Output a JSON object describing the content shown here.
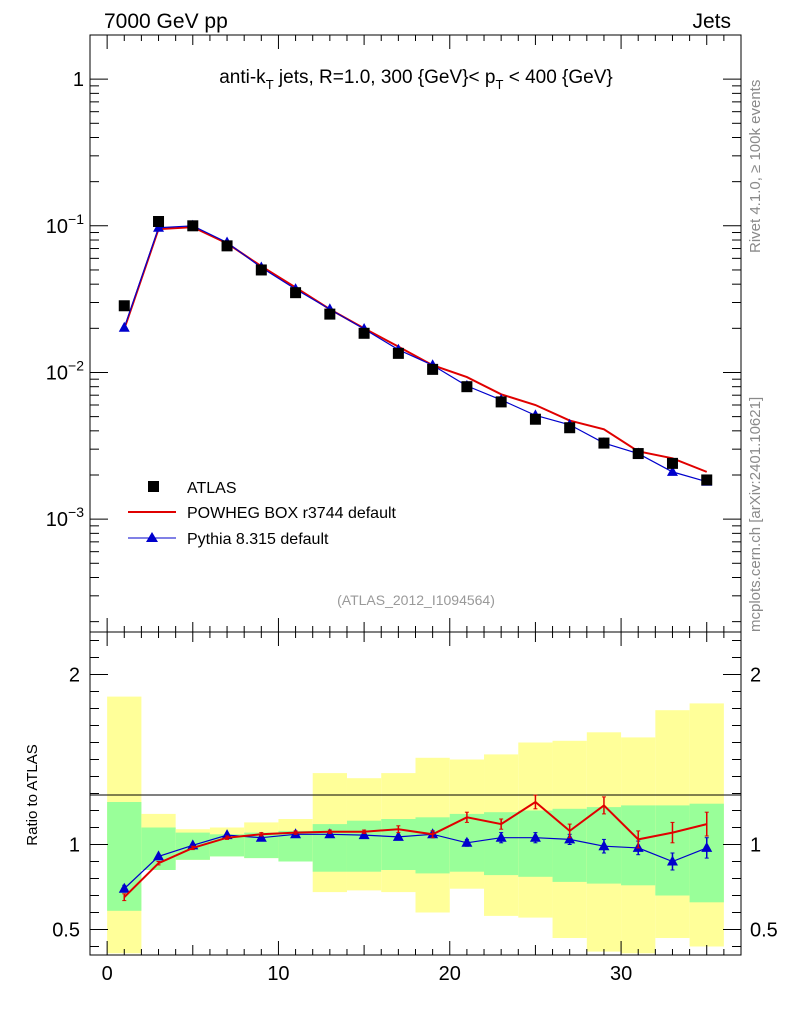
{
  "header": {
    "left": "7000 GeV pp",
    "right": "Jets"
  },
  "side_labels": {
    "rivet": "Rivet 4.1.0, ≥ 100k events",
    "mcplots": "mcplots.cern.ch [arXiv:2401.10621]"
  },
  "colors": {
    "atlas": "#000000",
    "powheg": "#e00000",
    "pythia": "#0000cc",
    "band_inner": "#99ff99",
    "band_outer": "#ffff99"
  },
  "chart_data": [
    {
      "type": "scatter",
      "panel": "main",
      "title": "anti-k_T jets, R=1.0, 300 {GeV}< p_T < 400 {GeV}",
      "title_parts": {
        "prefix": "anti-k",
        "sub1": "T",
        "middle": " jets, R=1.0, 300 {GeV}< p",
        "sub2": "T",
        "suffix": " < 400 {GeV}"
      },
      "analysis_id": "(ATLAS_2012_I1094564)",
      "yscale": "log",
      "ylim": [
        0.00017,
        2.0
      ],
      "xlim": [
        -1,
        37
      ],
      "ytick_labels": [
        {
          "value": 1,
          "base": "1",
          "exp": ""
        },
        {
          "value": 0.1,
          "base": "10",
          "exp": "−1"
        },
        {
          "value": 0.01,
          "base": "10",
          "exp": "−2"
        },
        {
          "value": 0.001,
          "base": "10",
          "exp": "−3"
        }
      ],
      "x": [
        1,
        3,
        5,
        7,
        9,
        11,
        13,
        15,
        17,
        19,
        21,
        23,
        25,
        27,
        29,
        31,
        33,
        35
      ],
      "series": [
        {
          "name": "ATLAS",
          "style": "markers-square",
          "values": [
            0.0285,
            0.107,
            0.1,
            0.073,
            0.05,
            0.035,
            0.025,
            0.0185,
            0.0135,
            0.0105,
            0.008,
            0.0063,
            0.0048,
            0.0042,
            0.0033,
            0.0028,
            0.0024,
            0.00185
          ]
        },
        {
          "name": "POWHEG BOX r3744 default",
          "style": "line",
          "values": [
            0.0198,
            0.095,
            0.098,
            0.076,
            0.053,
            0.038,
            0.027,
            0.02,
            0.015,
            0.0112,
            0.0093,
            0.0071,
            0.006,
            0.0047,
            0.0041,
            0.0029,
            0.0026,
            0.0021
          ]
        },
        {
          "name": "Pythia 8.315 default",
          "style": "line-triangles",
          "values": [
            0.0202,
            0.097,
            0.1,
            0.077,
            0.052,
            0.037,
            0.027,
            0.0198,
            0.0143,
            0.0112,
            0.0081,
            0.0065,
            0.0051,
            0.0044,
            0.0033,
            0.0028,
            0.0021,
            0.0018
          ]
        }
      ]
    },
    {
      "type": "line",
      "panel": "ratio",
      "ylabel": "Ratio to ATLAS",
      "xlabel": "",
      "ylim": [
        0.35,
        2.25
      ],
      "xlim": [
        -1,
        37
      ],
      "ytick_labels": [
        "0.5",
        "1",
        "2"
      ],
      "xtick_labels": [
        "0",
        "10",
        "20",
        "30"
      ],
      "bin_edges": [
        0,
        2,
        4,
        6,
        8,
        10,
        12,
        14,
        16,
        18,
        20,
        22,
        24,
        26,
        28,
        30,
        32,
        34,
        36
      ],
      "band_inner": {
        "low": [
          0.61,
          0.85,
          0.91,
          0.93,
          0.92,
          0.9,
          0.84,
          0.84,
          0.85,
          0.83,
          0.84,
          0.82,
          0.81,
          0.78,
          0.77,
          0.76,
          0.7,
          0.66
        ],
        "high": [
          1.25,
          1.1,
          1.07,
          1.06,
          1.07,
          1.08,
          1.12,
          1.14,
          1.15,
          1.16,
          1.18,
          1.19,
          1.2,
          1.21,
          1.22,
          1.23,
          1.23,
          1.24
        ]
      },
      "band_outer": {
        "low": [
          0.36,
          0.86,
          0.91,
          0.93,
          0.92,
          0.9,
          0.72,
          0.73,
          0.72,
          0.6,
          0.74,
          0.58,
          0.57,
          0.45,
          0.37,
          0.36,
          0.45,
          0.4
        ],
        "high": [
          1.87,
          1.18,
          1.09,
          1.1,
          1.13,
          1.15,
          1.42,
          1.39,
          1.42,
          1.51,
          1.5,
          1.53,
          1.6,
          1.61,
          1.66,
          1.63,
          1.79,
          1.83
        ]
      },
      "x": [
        1,
        3,
        5,
        7,
        9,
        11,
        13,
        15,
        17,
        19,
        21,
        23,
        25,
        27,
        29,
        31,
        33,
        35
      ],
      "series": [
        {
          "name": "POWHEG BOX r3744 default",
          "values": [
            0.69,
            0.89,
            0.98,
            1.04,
            1.06,
            1.07,
            1.075,
            1.075,
            1.09,
            1.06,
            1.16,
            1.12,
            1.25,
            1.08,
            1.23,
            1.03,
            1.07,
            1.12
          ],
          "errors": [
            0.02,
            0.01,
            0.01,
            0.01,
            0.01,
            0.01,
            0.01,
            0.01,
            0.02,
            0.02,
            0.03,
            0.03,
            0.04,
            0.04,
            0.05,
            0.05,
            0.06,
            0.07
          ]
        },
        {
          "name": "Pythia 8.315 default",
          "values": [
            0.74,
            0.93,
            0.995,
            1.055,
            1.04,
            1.06,
            1.06,
            1.055,
            1.045,
            1.06,
            1.01,
            1.04,
            1.04,
            1.03,
            0.99,
            0.98,
            0.9,
            0.98
          ],
          "errors": [
            0.02,
            0.01,
            0.01,
            0.01,
            0.01,
            0.01,
            0.01,
            0.01,
            0.01,
            0.02,
            0.02,
            0.03,
            0.03,
            0.03,
            0.04,
            0.04,
            0.05,
            0.06
          ]
        }
      ]
    }
  ]
}
